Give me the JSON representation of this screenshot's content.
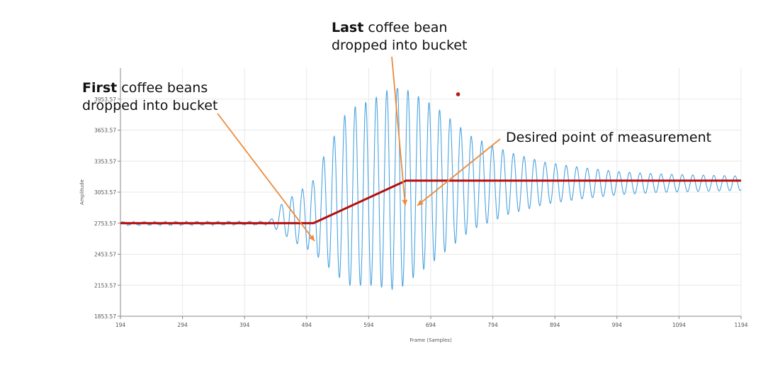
{
  "annotations": {
    "last": {
      "bold": "Last",
      "rest1": " coffee bean",
      "line2": "dropped into bucket"
    },
    "first": {
      "bold": "First",
      "rest1": " coffee beans",
      "line2": "dropped into bucket"
    },
    "desired": "Desired point of measurement"
  },
  "colors": {
    "signal": "#4aa3e0",
    "step": "#b80c0c",
    "arrow": "#ef8a3a",
    "marker": "#b31b1b",
    "grid": "#e8e8e8"
  },
  "chart_data": {
    "type": "line",
    "xlabel": "Frame (Samples)",
    "ylabel": "Amplitude",
    "xlim": [
      194,
      1194
    ],
    "ylim": [
      1853.57,
      4253.57
    ],
    "xticks": [
      194,
      294,
      394,
      494,
      594,
      694,
      794,
      894,
      994,
      1094,
      1194
    ],
    "yticks": [
      1853.57,
      2153.57,
      2453.57,
      2753.57,
      3053.57,
      3353.57,
      3653.57,
      3953.57
    ],
    "grid": true,
    "series": [
      {
        "kind": "signal",
        "color": "#4aa3e0",
        "baseline": 2753.57,
        "steady": 3140,
        "x": [
          194,
          434,
          455,
          480,
          505,
          520,
          560,
          600,
          640,
          700,
          760,
          820,
          880,
          940,
          1000,
          1060,
          1120,
          1194
        ],
        "amplitude": [
          15,
          15,
          150,
          250,
          350,
          500,
          850,
          900,
          1000,
          750,
          450,
          300,
          200,
          150,
          110,
          90,
          80,
          70
        ],
        "center": [
          2750,
          2755,
          2800,
          2800,
          2820,
          2880,
          3000,
          3050,
          3100,
          3140,
          3140,
          3140,
          3140,
          3140,
          3140,
          3140,
          3140,
          3140
        ],
        "period": 17
      },
      {
        "kind": "step",
        "color": "#b80c0c",
        "x": [
          194,
          505,
          654,
          1194
        ],
        "y": [
          2753.57,
          2753.57,
          3165,
          3165
        ]
      }
    ],
    "marker": {
      "x": 738,
      "y": 4000
    }
  }
}
